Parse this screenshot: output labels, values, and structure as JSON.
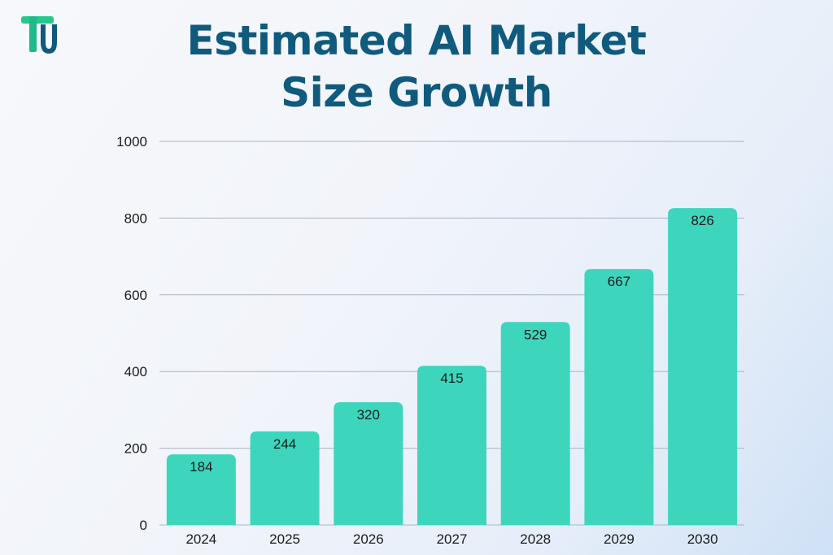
{
  "colors": {
    "title": "#0f5a7d",
    "bar": "#3dd6bd",
    "grid": "#aab4c2",
    "logo_top": "#22c98a",
    "logo_stem": "#0f5a7d"
  },
  "logo": {
    "icon": "tu-logo-icon"
  },
  "title": {
    "line1": "Estimated AI Market",
    "line2": "Size Growth"
  },
  "chart_data": {
    "type": "bar",
    "categories": [
      "2024",
      "2025",
      "2026",
      "2027",
      "2028",
      "2029",
      "2030"
    ],
    "values": [
      184,
      244,
      320,
      415,
      529,
      667,
      826
    ],
    "data_labels": [
      "184",
      "244",
      "320",
      "415",
      "529",
      "667",
      "826"
    ],
    "title": "Estimated AI Market Size Growth",
    "xlabel": "",
    "ylabel": "",
    "ylim": [
      0,
      1000
    ],
    "yticks": [
      0,
      200,
      400,
      600,
      800,
      1000
    ],
    "grid": true
  }
}
